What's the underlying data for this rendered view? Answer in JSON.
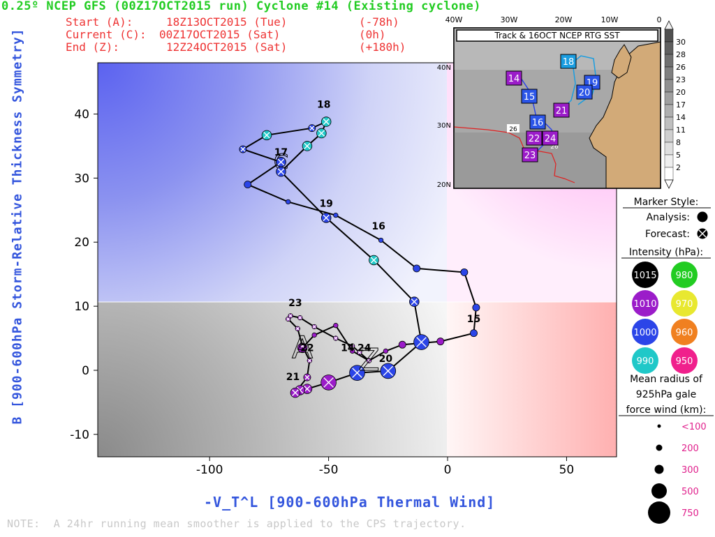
{
  "header": {
    "title": "0.25º NCEP GFS (00Z17OCT2015 run) Cyclone #14 (Existing cyclone)",
    "start_label": "Start (A):",
    "start_time": "18Z13OCT2015 (Tue)",
    "start_offset": "(-78h)",
    "current_label": "Current (C):",
    "current_time": "00Z17OCT2015 (Sat)",
    "current_offset": "(0h)",
    "end_label": "End (Z):",
    "end_time": "12Z24OCT2015 (Sat)",
    "end_offset": "(+180h)"
  },
  "note": "NOTE:  A 24hr running mean smoother is applied to the CPS trajectory.",
  "inset": {
    "title": "Track & 16OCT NCEP RTG SST",
    "lon_labels": [
      "40W",
      "30W",
      "20W",
      "10W",
      "0"
    ],
    "lat_labels": [
      "40N",
      "30N",
      "20N"
    ],
    "sst_label": "26",
    "sst_label2": "26",
    "track_boxes": [
      {
        "label": "14",
        "color": "#9b1cc9"
      },
      {
        "label": "15",
        "color": "#2b55e8"
      },
      {
        "label": "16",
        "color": "#2b55e8"
      },
      {
        "label": "18",
        "color": "#1a9de0"
      },
      {
        "label": "19",
        "color": "#2b55e8"
      },
      {
        "label": "20",
        "color": "#2b55e8"
      },
      {
        "label": "21",
        "color": "#9b1cc9"
      },
      {
        "label": "22",
        "color": "#9b1cc9"
      },
      {
        "label": "23",
        "color": "#9b1cc9"
      },
      {
        "label": "24",
        "color": "#9b1cc9"
      }
    ],
    "colorbar_ticks": [
      "30",
      "28",
      "26",
      "23",
      "20",
      "17",
      "14",
      "11",
      "8",
      "5",
      "2"
    ]
  },
  "legend": {
    "marker_style_title": "Marker Style:",
    "analysis_label": "Analysis:",
    "forecast_label": "Forecast:",
    "intensity_title": "Intensity (hPa):",
    "intensity": [
      {
        "value": "1015",
        "color": "#000000",
        "text_color": "#ffffff"
      },
      {
        "value": "980",
        "color": "#22cc22",
        "text_color": "#ffffff"
      },
      {
        "value": "1010",
        "color": "#9b1cc9",
        "text_color": "#ffffff"
      },
      {
        "value": "970",
        "color": "#e8e830",
        "text_color": "#ffffff"
      },
      {
        "value": "1000",
        "color": "#2b45e8",
        "text_color": "#ffffff"
      },
      {
        "value": "960",
        "color": "#f08020",
        "text_color": "#ffffff"
      },
      {
        "value": "990",
        "color": "#20c8c8",
        "text_color": "#ffffff"
      },
      {
        "value": "950",
        "color": "#f0208c",
        "text_color": "#ffffff"
      }
    ],
    "radius_title_1": "Mean radius of",
    "radius_title_2": "925hPa gale",
    "radius_title_3": "force wind (km):",
    "radius": [
      {
        "label": "<100",
        "r": 2.5
      },
      {
        "label": "200",
        "r": 4.5
      },
      {
        "label": "300",
        "r": 6.5
      },
      {
        "label": "500",
        "r": 11
      },
      {
        "label": "750",
        "r": 16
      }
    ]
  },
  "chart_data": {
    "type": "scatter",
    "title": "0.25º NCEP GFS (00Z17OCT2015 run) Cyclone #14 (Existing cyclone)",
    "xlabel": "-V_T^L [900-600hPa Thermal Wind]",
    "ylabel": "B [900-600hPa Storm-Relative Thickness Symmetry]",
    "xlim": [
      -147,
      71
    ],
    "ylim": [
      -13.5,
      48
    ],
    "xticks": [
      "-100",
      "-50",
      "0",
      "50"
    ],
    "xtick_values": [
      -100,
      -50,
      0,
      50
    ],
    "yticks": [
      "-10",
      "0",
      "10",
      "20",
      "30",
      "40"
    ],
    "ytick_values": [
      -10,
      0,
      10,
      20,
      30,
      40
    ],
    "day_labels": [
      {
        "text": "14",
        "x": -42,
        "y": 3
      },
      {
        "text": "15",
        "x": 11,
        "y": 7.5
      },
      {
        "text": "16",
        "x": -29,
        "y": 22
      },
      {
        "text": "17",
        "x": -70,
        "y": 33.5
      },
      {
        "text": "18",
        "x": -52,
        "y": 41
      },
      {
        "text": "19",
        "x": -51,
        "y": 25.5
      },
      {
        "text": "20",
        "x": -26,
        "y": 1.3
      },
      {
        "text": "21",
        "x": -65,
        "y": -1.5
      },
      {
        "text": "22",
        "x": -59,
        "y": 3
      },
      {
        "text": "23",
        "x": -64,
        "y": 10
      },
      {
        "text": "24",
        "x": -35,
        "y": 3
      }
    ],
    "series": [
      {
        "points": [
          {
            "x": -61,
            "y": 3.5,
            "p": "1010",
            "r": 300,
            "f": false,
            "lab": "A"
          },
          {
            "x": -56,
            "y": 5.5,
            "p": "1010",
            "r": 100,
            "f": false
          },
          {
            "x": -47,
            "y": 7,
            "p": "1010",
            "r": 100,
            "f": false
          },
          {
            "x": -40,
            "y": 3,
            "p": "1010",
            "r": 100,
            "f": false
          },
          {
            "x": -33,
            "y": 1.5,
            "p": "1010",
            "r": 100,
            "f": false
          },
          {
            "x": -26,
            "y": 3,
            "p": "1010",
            "r": 100,
            "f": false
          },
          {
            "x": -19,
            "y": 4,
            "p": "1010",
            "r": 200,
            "f": false
          },
          {
            "x": -3,
            "y": 4.5,
            "p": "1010",
            "r": 200,
            "f": false
          },
          {
            "x": 11,
            "y": 5.8,
            "p": "1000",
            "r": 200,
            "f": false
          },
          {
            "x": 12,
            "y": 9.8,
            "p": "1000",
            "r": 200,
            "f": false
          },
          {
            "x": 7,
            "y": 15.3,
            "p": "1000",
            "r": 200,
            "f": false
          },
          {
            "x": -13,
            "y": 15.9,
            "p": "1000",
            "r": 200,
            "f": false
          },
          {
            "x": -28,
            "y": 20.3,
            "p": "1000",
            "r": 100,
            "f": false
          },
          {
            "x": -47,
            "y": 24.2,
            "p": "1000",
            "r": 100,
            "f": false
          },
          {
            "x": -67,
            "y": 26.3,
            "p": "1000",
            "r": 100,
            "f": false
          },
          {
            "x": -84,
            "y": 29,
            "p": "1000",
            "r": 200,
            "f": false
          },
          {
            "x": -70,
            "y": 32.5,
            "p": "1000",
            "r": 300,
            "f": false,
            "lab": "C"
          }
        ]
      },
      {
        "points": [
          {
            "x": -70,
            "y": 32.5,
            "p": "1000",
            "r": 300,
            "f": true
          },
          {
            "x": -86,
            "y": 34.5,
            "p": "1000",
            "r": 200,
            "f": true
          },
          {
            "x": -76,
            "y": 36.7,
            "p": "990",
            "r": 300,
            "f": true
          },
          {
            "x": -57,
            "y": 37.8,
            "p": "1000",
            "r": 200,
            "f": true
          },
          {
            "x": -51,
            "y": 38.8,
            "p": "990",
            "r": 300,
            "f": true
          },
          {
            "x": -53,
            "y": 37,
            "p": "990",
            "r": 300,
            "f": true
          },
          {
            "x": -59,
            "y": 35,
            "p": "990",
            "r": 300,
            "f": true
          },
          {
            "x": -70,
            "y": 31,
            "p": "1000",
            "r": 300,
            "f": true
          },
          {
            "x": -51,
            "y": 23.8,
            "p": "1000",
            "r": 300,
            "f": true
          },
          {
            "x": -31,
            "y": 17.2,
            "p": "990",
            "r": 300,
            "f": true
          },
          {
            "x": -14,
            "y": 10.7,
            "p": "1000",
            "r": 300,
            "f": true
          },
          {
            "x": -11,
            "y": 4.4,
            "p": "1000",
            "r": 500,
            "f": true
          },
          {
            "x": -25,
            "y": -0.1,
            "p": "1000",
            "r": 500,
            "f": true
          },
          {
            "x": -38,
            "y": -0.4,
            "p": "1000",
            "r": 500,
            "f": true
          },
          {
            "x": -50,
            "y": -1.9,
            "p": "1010",
            "r": 500,
            "f": true
          },
          {
            "x": -59,
            "y": -2.9,
            "p": "1010",
            "r": 300,
            "f": true
          },
          {
            "x": -62,
            "y": -3.1,
            "p": "1010",
            "r": 300,
            "f": true
          },
          {
            "x": -64,
            "y": -3.5,
            "p": "1010",
            "r": 300,
            "f": true
          },
          {
            "x": -59,
            "y": -1.1,
            "p": "1010",
            "r": 200,
            "f": true
          },
          {
            "x": -58,
            "y": 1.5,
            "p": "1010",
            "r": 100,
            "f": true
          },
          {
            "x": -61,
            "y": 3.8,
            "p": "1010",
            "r": 100,
            "f": true
          },
          {
            "x": -63,
            "y": 6.5,
            "p": "1010",
            "r": 100,
            "f": true
          },
          {
            "x": -67,
            "y": 8,
            "p": "1010",
            "r": 100,
            "f": true
          },
          {
            "x": -66,
            "y": 8.5,
            "p": "1010",
            "r": 100,
            "f": true
          },
          {
            "x": -62,
            "y": 8.2,
            "p": "1010",
            "r": 100,
            "f": true
          },
          {
            "x": -56,
            "y": 6.8,
            "p": "1010",
            "r": 100,
            "f": true
          },
          {
            "x": -47,
            "y": 5,
            "p": "1010",
            "r": 100,
            "f": true
          },
          {
            "x": -40,
            "y": 3.8,
            "p": "1010",
            "r": 100,
            "f": true
          },
          {
            "x": -37,
            "y": 2.8,
            "p": "1010",
            "r": 100,
            "f": true
          },
          {
            "x": -33,
            "y": 1.5,
            "p": "1010",
            "r": 100,
            "f": true,
            "lab": "Z"
          }
        ]
      }
    ]
  }
}
